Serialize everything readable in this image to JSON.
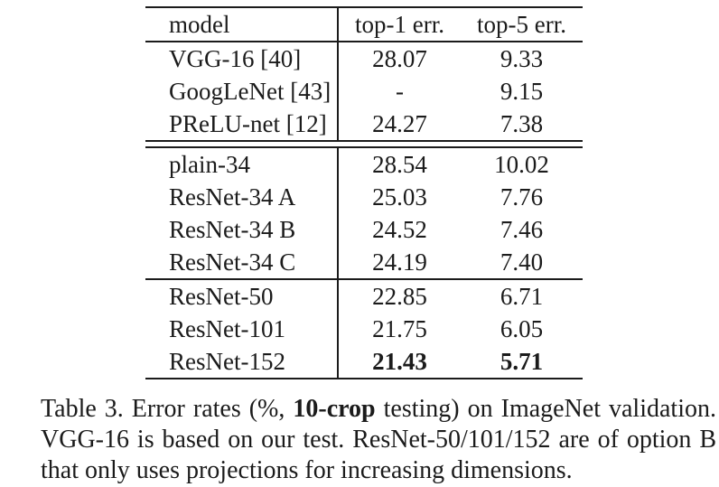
{
  "colors": {
    "background": "#ffffff",
    "text": "#1b1b1b",
    "rule": "#1b1b1b"
  },
  "table": {
    "header": {
      "model": "model",
      "top1": "top-1 err.",
      "top5": "top-5 err."
    },
    "sections": [
      {
        "rows": [
          {
            "model": "VGG-16 [40]",
            "top1": "28.07",
            "top5": "9.33",
            "bold": false
          },
          {
            "model": "GoogLeNet [43]",
            "top1": "-",
            "top5": "9.15",
            "bold": false
          },
          {
            "model": "PReLU-net [12]",
            "top1": "24.27",
            "top5": "7.38",
            "bold": false
          }
        ]
      },
      {
        "rows": [
          {
            "model": "plain-34",
            "top1": "28.54",
            "top5": "10.02",
            "bold": false
          },
          {
            "model": "ResNet-34 A",
            "top1": "25.03",
            "top5": "7.76",
            "bold": false
          },
          {
            "model": "ResNet-34 B",
            "top1": "24.52",
            "top5": "7.46",
            "bold": false
          },
          {
            "model": "ResNet-34 C",
            "top1": "24.19",
            "top5": "7.40",
            "bold": false
          }
        ]
      },
      {
        "rows": [
          {
            "model": "ResNet-50",
            "top1": "22.85",
            "top5": "6.71",
            "bold": false
          },
          {
            "model": "ResNet-101",
            "top1": "21.75",
            "top5": "6.05",
            "bold": false
          },
          {
            "model": "ResNet-152",
            "top1": "21.43",
            "top5": "5.71",
            "bold": true
          }
        ]
      }
    ]
  },
  "caption": {
    "line1_pre": "Table 3. Error rates (%, ",
    "line1_bold": "10-crop",
    "line1_post": " testing) on ImageNet validation.",
    "line2": "VGG-16 is based on our test. ResNet-50/101/152 are of option B",
    "line3": "that only uses projections for increasing dimensions."
  }
}
